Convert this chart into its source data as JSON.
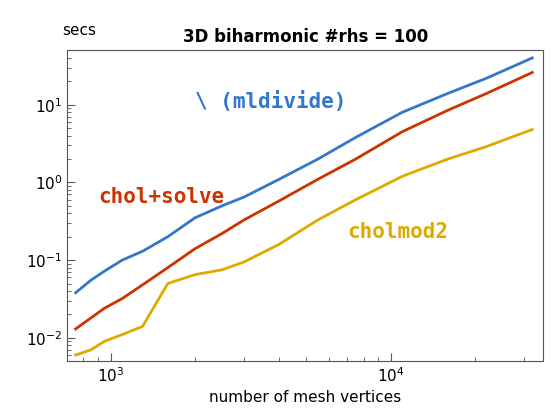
{
  "title": "3D biharmonic #rhs = 100",
  "xlabel": "number of mesh vertices",
  "ylabel": "secs",
  "xlim": [
    700,
    35000
  ],
  "ylim": [
    0.005,
    50
  ],
  "blue_label": "\\ (mldivide)",
  "red_label": "chol+solve",
  "yellow_label": "cholmod2",
  "blue_color": "#3377cc",
  "red_color": "#cc3300",
  "yellow_color": "#ddaa00",
  "blue_x": [
    750,
    850,
    950,
    1100,
    1300,
    1600,
    2000,
    2500,
    3000,
    4000,
    5500,
    7500,
    11000,
    16000,
    22000,
    32000
  ],
  "blue_y": [
    0.038,
    0.055,
    0.072,
    0.1,
    0.13,
    0.2,
    0.35,
    0.5,
    0.65,
    1.1,
    2.0,
    3.8,
    8.0,
    14,
    22,
    40
  ],
  "red_x": [
    750,
    850,
    950,
    1100,
    1300,
    1600,
    2000,
    2500,
    3000,
    4000,
    5500,
    7500,
    11000,
    16000,
    22000,
    32000
  ],
  "red_y": [
    0.013,
    0.018,
    0.024,
    0.032,
    0.048,
    0.08,
    0.14,
    0.22,
    0.33,
    0.58,
    1.1,
    2.0,
    4.5,
    8.5,
    14,
    26
  ],
  "yellow_x": [
    750,
    850,
    950,
    1100,
    1300,
    1600,
    2000,
    2500,
    3000,
    4000,
    5500,
    7500,
    11000,
    16000,
    22000,
    32000
  ],
  "yellow_y": [
    0.006,
    0.007,
    0.009,
    0.011,
    0.014,
    0.05,
    0.065,
    0.075,
    0.095,
    0.16,
    0.33,
    0.6,
    1.2,
    2.0,
    2.9,
    4.8
  ],
  "line_width": 2.0,
  "title_fontsize": 12,
  "label_fontsize": 11,
  "annotation_fontsize": 15,
  "tick_fontsize": 11
}
